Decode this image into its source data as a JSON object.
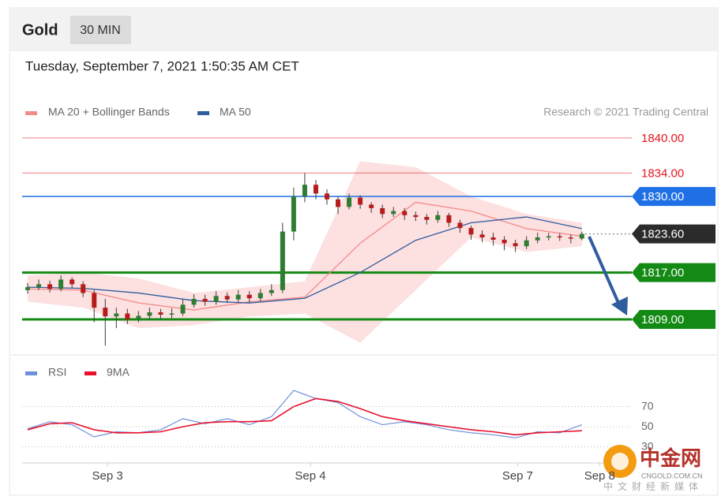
{
  "header": {
    "symbol": "Gold",
    "interval": "30 MIN"
  },
  "timestamp": "Tuesday, September 7, 2021 1:50:35 AM CET",
  "chart_data": [
    {
      "type": "candlestick",
      "credit": "Research © 2021 Trading Central",
      "xlim": [
        0,
        55
      ],
      "ylim": [
        1803.2,
        1842
      ],
      "up_color": "#2e7d32",
      "down_color": "#b71c1c",
      "candles": {
        "x": [
          0.5,
          1.5,
          2.5,
          3.5,
          4.5,
          5.5,
          6.5,
          7.5,
          8.5,
          9.5,
          10.5,
          11.5,
          12.5,
          13.5,
          14.5,
          15.5,
          16.5,
          17.5,
          18.5,
          19.5,
          20.5,
          21.5,
          22.5,
          23.5,
          24.5,
          25.5,
          26.5,
          27.5,
          28.5,
          29.5,
          30.5,
          31.5,
          32.5,
          33.5,
          34.5,
          35.5,
          36.5,
          37.5,
          38.5,
          39.5,
          40.5,
          41.5,
          42.5,
          43.5,
          44.5,
          45.5,
          46.5,
          47.5,
          48.5,
          49.5,
          50.5
        ],
        "open": [
          1814,
          1814.5,
          1815,
          1814.2,
          1815.8,
          1815,
          1813.5,
          1811,
          1809.5,
          1810,
          1809,
          1809.6,
          1810.2,
          1809.8,
          1810,
          1811.5,
          1812.5,
          1812,
          1813,
          1812.4,
          1813.2,
          1812.6,
          1813.5,
          1814,
          1824,
          1830,
          1832,
          1830.5,
          1829.5,
          1828.2,
          1829.8,
          1828.6,
          1828,
          1827,
          1827.5,
          1826.8,
          1826.5,
          1826,
          1826.8,
          1825.5,
          1824.6,
          1823.5,
          1823,
          1822.6,
          1822,
          1821.5,
          1822.5,
          1823,
          1823.2,
          1823,
          1822.8
        ],
        "high": [
          1815.2,
          1815.8,
          1815.6,
          1816.5,
          1816.2,
          1815.5,
          1814,
          1812.5,
          1811,
          1810.8,
          1810.4,
          1811,
          1810.8,
          1810.9,
          1812.4,
          1813.3,
          1813.2,
          1813.8,
          1813.6,
          1814,
          1813.8,
          1814.2,
          1815,
          1825.5,
          1831.5,
          1834,
          1832.8,
          1831.2,
          1830,
          1830.5,
          1830.2,
          1829,
          1828.6,
          1828.2,
          1828,
          1827.4,
          1827,
          1827.5,
          1827.2,
          1826,
          1825,
          1824.2,
          1823.8,
          1823.2,
          1822.6,
          1823.2,
          1823.8,
          1823.8,
          1823.7,
          1823.5,
          1824
        ],
        "low": [
          1813.4,
          1814,
          1813.6,
          1813.8,
          1814.3,
          1812.8,
          1808.5,
          1804.5,
          1807.5,
          1808.2,
          1808.5,
          1809,
          1809.1,
          1809.2,
          1809.6,
          1811,
          1811.3,
          1811.5,
          1811.8,
          1811.9,
          1811.9,
          1812.1,
          1813,
          1813.5,
          1822.5,
          1829,
          1829.5,
          1828.6,
          1827,
          1827.8,
          1827.9,
          1827.2,
          1826.3,
          1826.5,
          1826,
          1825.8,
          1825.2,
          1825.5,
          1824.8,
          1823.8,
          1822.6,
          1822.2,
          1821.6,
          1820.8,
          1820.5,
          1821,
          1822,
          1822.5,
          1822.4,
          1822,
          1822.5
        ],
        "close": [
          1814.5,
          1815,
          1814.2,
          1815.8,
          1815,
          1813.5,
          1811,
          1809.5,
          1810,
          1809,
          1809.6,
          1810.2,
          1809.8,
          1810,
          1811.5,
          1812.5,
          1812,
          1813,
          1812.4,
          1813.2,
          1812.6,
          1813.5,
          1814,
          1824,
          1830,
          1832,
          1830.5,
          1829.5,
          1828.2,
          1829.8,
          1828.6,
          1828,
          1827,
          1827.5,
          1826.8,
          1826.5,
          1826,
          1826.8,
          1825.5,
          1824.6,
          1823.5,
          1823,
          1822.6,
          1822,
          1821.5,
          1822.5,
          1823,
          1823.2,
          1823,
          1822.8,
          1823.6
        ]
      },
      "series": [
        {
          "name": "MA 20 + Bollinger Bands",
          "color": "#f28b8b",
          "band_color": "#fde0e0",
          "x": [
            0.5,
            5.5,
            10.5,
            15.5,
            20.5,
            25.5,
            30.5,
            35.5,
            40.5,
            45.5,
            50.5
          ],
          "values": [
            1814.2,
            1814,
            1811.8,
            1810.6,
            1812,
            1812.8,
            1822,
            1829,
            1827.5,
            1824.5,
            1823.2
          ],
          "upper": [
            1816.5,
            1817,
            1816,
            1813.5,
            1814.5,
            1815.5,
            1836,
            1835,
            1830,
            1827,
            1825.5
          ],
          "lower": [
            1812,
            1811,
            1807.5,
            1808,
            1809.5,
            1810,
            1805,
            1814,
            1823,
            1820.5,
            1821.5
          ]
        },
        {
          "name": "MA 50",
          "color": "#2f5d9e",
          "x": [
            0.5,
            5.5,
            10.5,
            15.5,
            20.5,
            25.5,
            30.5,
            35.5,
            40.5,
            45.5,
            50.5
          ],
          "values": [
            1814.5,
            1814.3,
            1813.5,
            1812.2,
            1811.8,
            1812.6,
            1817,
            1822.5,
            1825.5,
            1826.5,
            1824.5
          ]
        }
      ],
      "levels": [
        {
          "value": 1840,
          "label": "1840.00",
          "color": "#e8141c",
          "line": "thin",
          "label_style": "text"
        },
        {
          "value": 1834,
          "label": "1834.00",
          "color": "#e8141c",
          "line": "thin",
          "label_style": "text"
        },
        {
          "value": 1830,
          "label": "1830.00",
          "color": "#1f6fe5",
          "line": "solid",
          "label_style": "tag"
        },
        {
          "value": 1823.6,
          "label": "1823.60",
          "color": "#2b2b2b",
          "line": "dotted",
          "label_style": "tag"
        },
        {
          "value": 1817,
          "label": "1817.00",
          "color": "#138a13",
          "line": "thick",
          "label_style": "tag"
        },
        {
          "value": 1809,
          "label": "1809.00",
          "color": "#138a13",
          "line": "thick",
          "label_style": "tag"
        }
      ]
    },
    {
      "type": "line",
      "xlim": [
        0,
        55
      ],
      "ylim": [
        18,
        90
      ],
      "yticks": [
        70,
        50,
        30
      ],
      "grid": true,
      "xticks": [
        {
          "value": 7.7,
          "label": "Sep 3"
        },
        {
          "value": 26,
          "label": "Sep 4"
        },
        {
          "value": 44.7,
          "label": "Sep 7"
        },
        {
          "value": 52.1,
          "label": "Sep 8"
        }
      ],
      "series": [
        {
          "name": "RSI",
          "color": "#6f8fdc",
          "x": [
            0.5,
            2.5,
            4.5,
            6.5,
            8.5,
            10.5,
            12.5,
            14.5,
            16.5,
            18.5,
            20.5,
            22.5,
            24.5,
            26.5,
            28.5,
            30.5,
            32.5,
            34.5,
            36.5,
            38.5,
            40.5,
            42.5,
            44.5,
            46.5,
            48.5,
            50.5
          ],
          "values": [
            48,
            55,
            52,
            40,
            45,
            44,
            47,
            58,
            53,
            58,
            52,
            60,
            86,
            78,
            74,
            60,
            52,
            55,
            52,
            47,
            44,
            42,
            39,
            45,
            44,
            52
          ]
        },
        {
          "name": "9MA",
          "color": "#e8112d",
          "x": [
            0.5,
            2.5,
            4.5,
            6.5,
            8.5,
            10.5,
            12.5,
            14.5,
            16.5,
            18.5,
            20.5,
            22.5,
            24.5,
            26.5,
            28.5,
            30.5,
            32.5,
            34.5,
            36.5,
            38.5,
            40.5,
            42.5,
            44.5,
            46.5,
            48.5,
            50.5
          ],
          "values": [
            47,
            53,
            54,
            47,
            44,
            44,
            45,
            50,
            54,
            55,
            55,
            56,
            70,
            78,
            75,
            68,
            60,
            56,
            53,
            50,
            47,
            45,
            42,
            44,
            45,
            46
          ]
        }
      ]
    }
  ],
  "watermark": {
    "name": "中金网",
    "domain": "CNGOLD.COM.CN",
    "slogan": "中文财经新媒体"
  }
}
